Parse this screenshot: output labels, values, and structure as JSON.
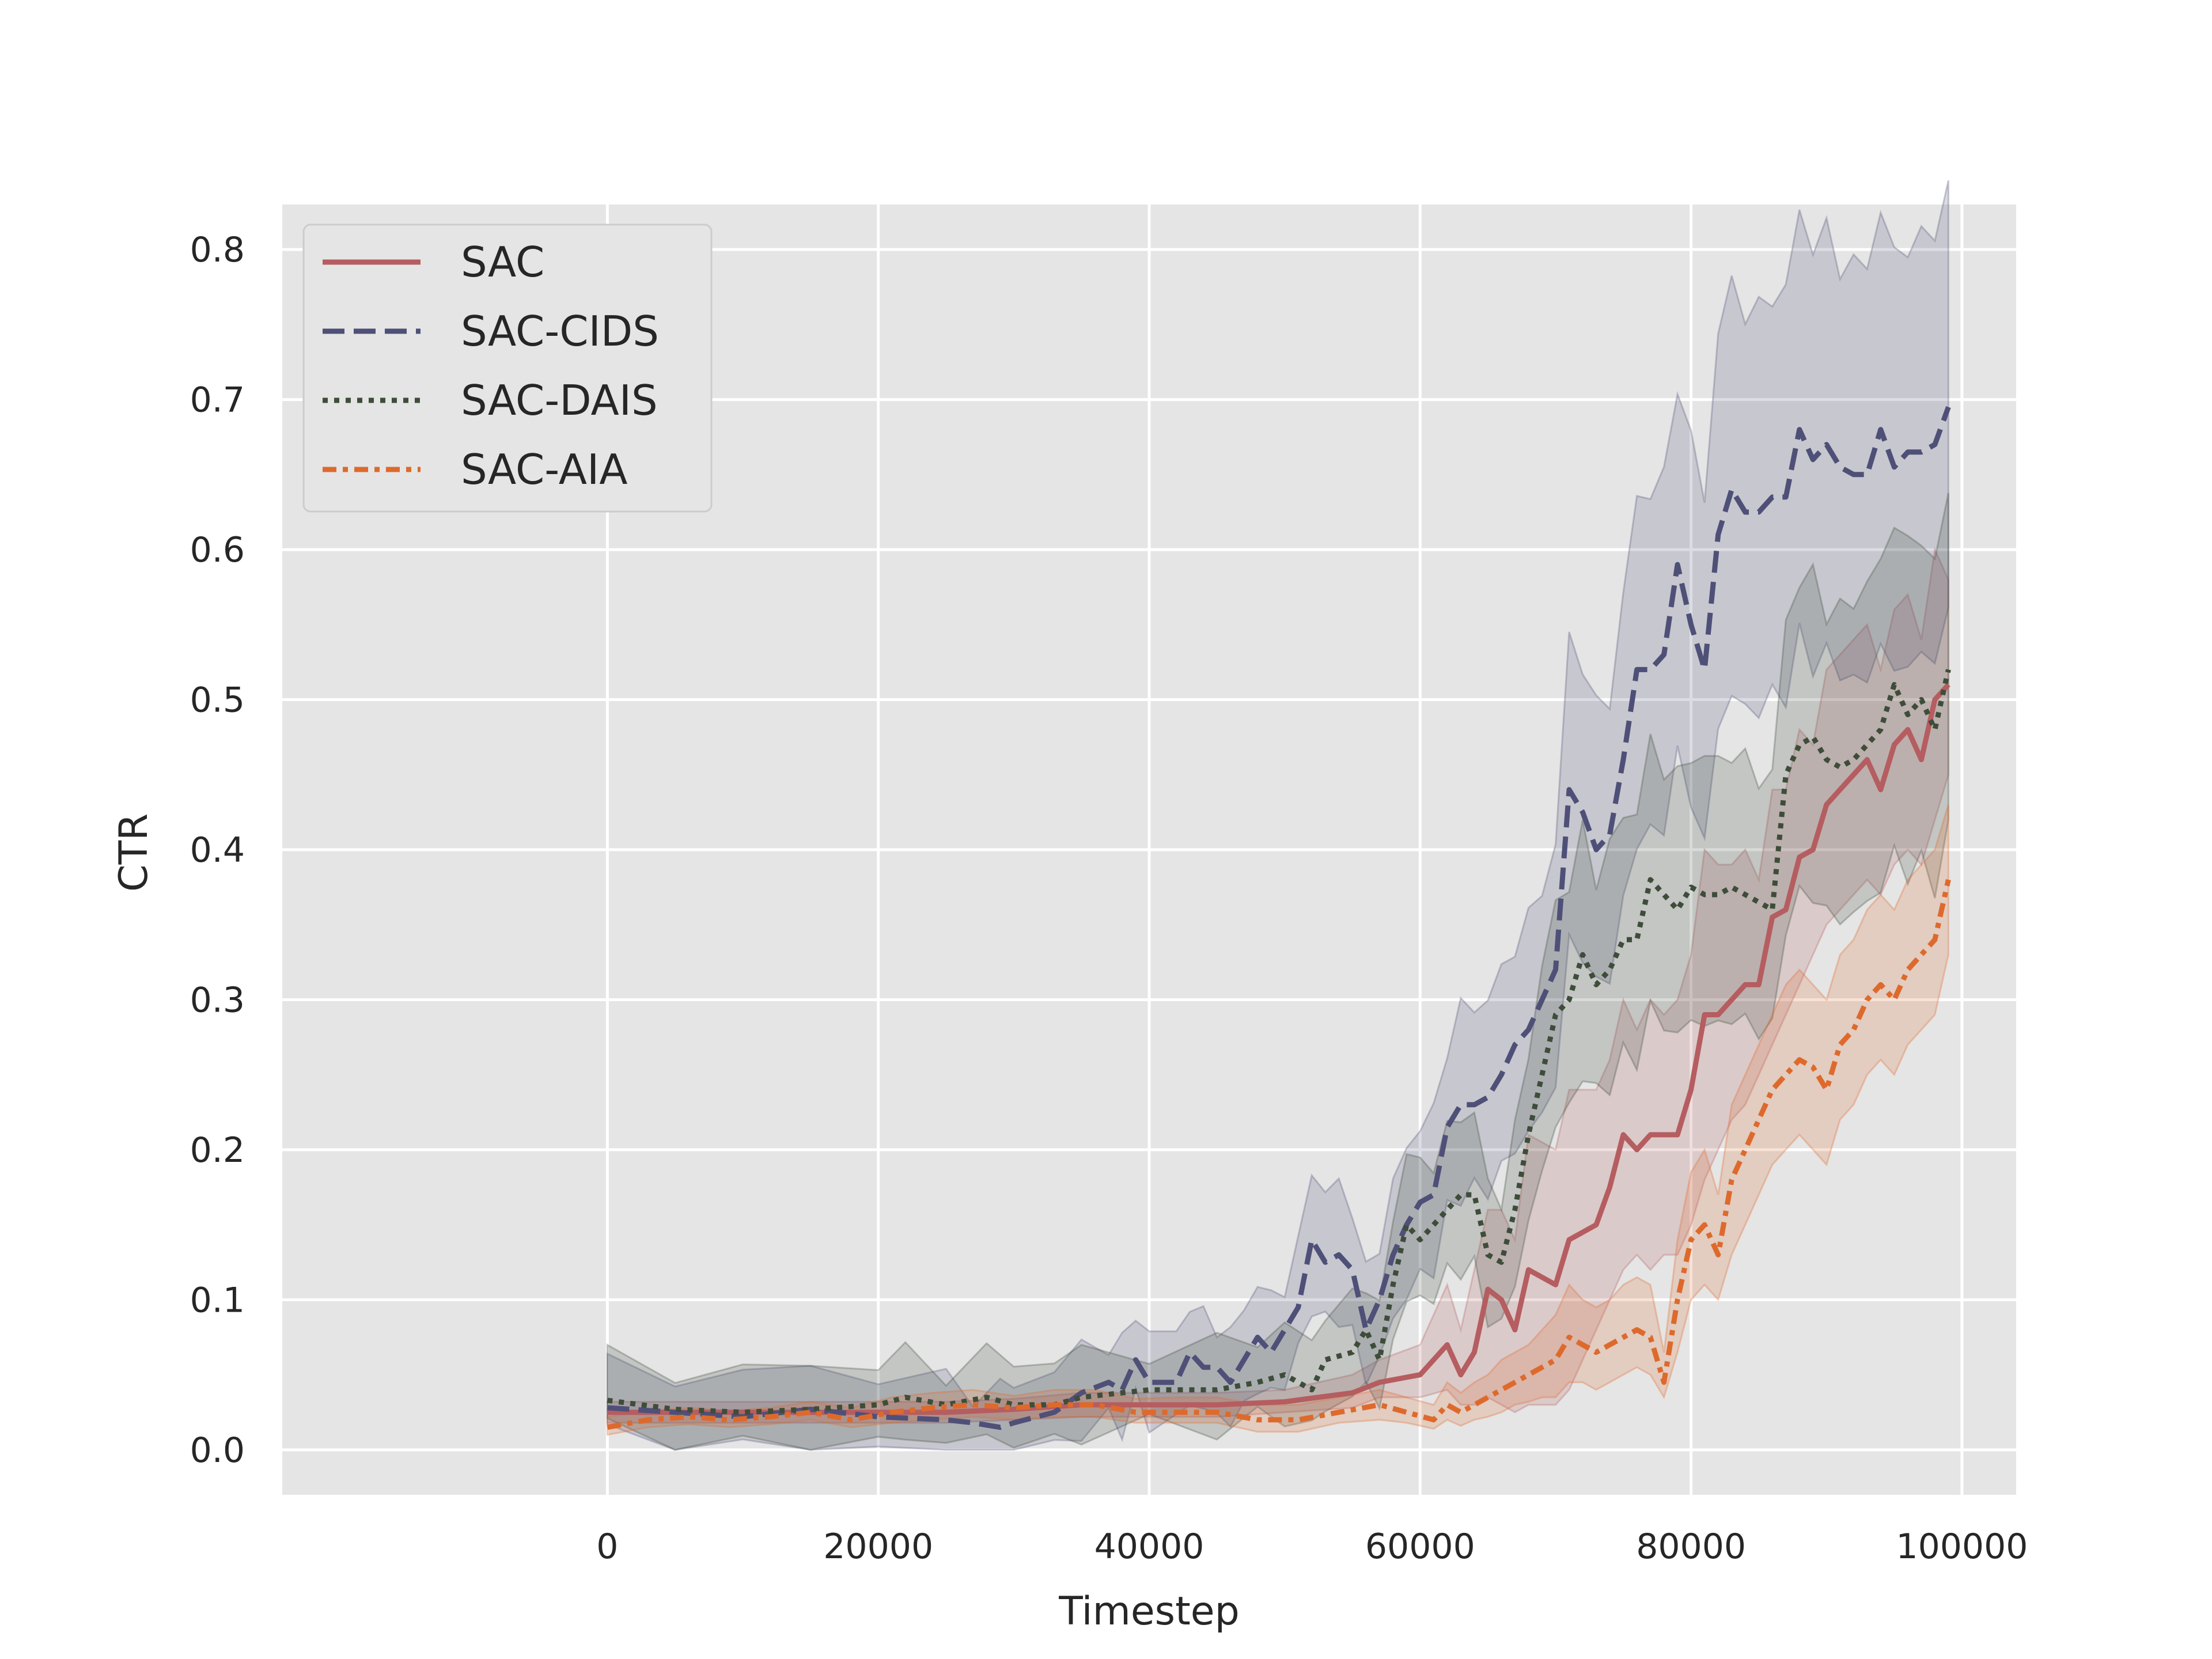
{
  "chart_data": {
    "type": "line",
    "xlabel": "Timestep",
    "ylabel": "CTR",
    "xlim": [
      -24000,
      104000
    ],
    "ylim": [
      -0.03,
      0.83
    ],
    "xticks": [
      0,
      20000,
      40000,
      60000,
      80000,
      100000
    ],
    "yticks": [
      0.0,
      0.1,
      0.2,
      0.3,
      0.4,
      0.5,
      0.6,
      0.7,
      0.8
    ],
    "xtick_labels": [
      "0",
      "20000",
      "40000",
      "60000",
      "80000",
      "100000"
    ],
    "ytick_labels": [
      "0.0",
      "0.1",
      "0.2",
      "0.3",
      "0.4",
      "0.5",
      "0.6",
      "0.7",
      "0.8"
    ],
    "grid": true,
    "legend": "upper left",
    "colors": {
      "background": "#e5e5e5",
      "grid": "#ffffff"
    },
    "series": [
      {
        "name": "SAC",
        "color": "#b55d60",
        "dash": "solid",
        "x": [
          0,
          5000,
          10000,
          15000,
          20000,
          25000,
          30000,
          35000,
          40000,
          45000,
          50000,
          55000,
          57000,
          60000,
          62000,
          63000,
          64000,
          65000,
          66000,
          67000,
          68000,
          70000,
          71000,
          72000,
          73000,
          74000,
          75000,
          76000,
          77000,
          78000,
          79000,
          80000,
          81000,
          82000,
          83000,
          84000,
          85000,
          86000,
          87000,
          88000,
          89000,
          90000,
          91000,
          92000,
          93000,
          94000,
          95000,
          96000,
          97000,
          98000,
          99000
        ],
        "y": [
          0.025,
          0.025,
          0.025,
          0.025,
          0.025,
          0.025,
          0.027,
          0.03,
          0.03,
          0.03,
          0.032,
          0.038,
          0.045,
          0.05,
          0.07,
          0.05,
          0.065,
          0.107,
          0.1,
          0.08,
          0.12,
          0.11,
          0.14,
          0.145,
          0.15,
          0.175,
          0.21,
          0.2,
          0.21,
          0.21,
          0.21,
          0.24,
          0.29,
          0.29,
          0.3,
          0.31,
          0.31,
          0.355,
          0.36,
          0.395,
          0.4,
          0.43,
          0.44,
          0.45,
          0.46,
          0.44,
          0.47,
          0.48,
          0.46,
          0.5,
          0.51
        ],
        "lower": [
          0.018,
          0.018,
          0.018,
          0.018,
          0.018,
          0.018,
          0.02,
          0.022,
          0.022,
          0.022,
          0.025,
          0.028,
          0.035,
          0.035,
          0.04,
          0.03,
          0.03,
          0.035,
          0.03,
          0.025,
          0.03,
          0.03,
          0.04,
          0.06,
          0.08,
          0.1,
          0.12,
          0.13,
          0.12,
          0.13,
          0.13,
          0.15,
          0.18,
          0.2,
          0.22,
          0.23,
          0.25,
          0.27,
          0.29,
          0.31,
          0.33,
          0.35,
          0.36,
          0.37,
          0.38,
          0.37,
          0.39,
          0.4,
          0.39,
          0.42,
          0.45
        ],
        "upper": [
          0.032,
          0.032,
          0.032,
          0.032,
          0.032,
          0.032,
          0.034,
          0.038,
          0.038,
          0.038,
          0.04,
          0.05,
          0.06,
          0.07,
          0.11,
          0.08,
          0.12,
          0.16,
          0.16,
          0.14,
          0.21,
          0.2,
          0.24,
          0.24,
          0.24,
          0.26,
          0.3,
          0.28,
          0.3,
          0.29,
          0.3,
          0.33,
          0.4,
          0.39,
          0.39,
          0.4,
          0.38,
          0.44,
          0.44,
          0.48,
          0.47,
          0.52,
          0.53,
          0.54,
          0.55,
          0.52,
          0.56,
          0.57,
          0.54,
          0.6,
          0.58
        ]
      },
      {
        "name": "SAC-CIDS",
        "color": "#4f5078",
        "dash": "dashed",
        "x": [
          0,
          5000,
          10000,
          15000,
          20000,
          25000,
          27000,
          29000,
          30000,
          33000,
          35000,
          37000,
          38000,
          39000,
          40000,
          42000,
          43000,
          44000,
          45000,
          46000,
          47000,
          48000,
          49000,
          50000,
          51000,
          52000,
          53000,
          54000,
          55000,
          56000,
          57000,
          58000,
          59000,
          60000,
          61000,
          62000,
          63000,
          64000,
          65000,
          66000,
          67000,
          68000,
          69000,
          70000,
          71000,
          72000,
          73000,
          74000,
          75000,
          76000,
          77000,
          78000,
          79000,
          80000,
          81000,
          82000,
          83000,
          84000,
          85000,
          86000,
          87000,
          88000,
          89000,
          90000,
          91000,
          92000,
          93000,
          94000,
          95000,
          96000,
          97000,
          98000,
          99000
        ],
        "y": [
          0.028,
          0.025,
          0.022,
          0.027,
          0.022,
          0.02,
          0.018,
          0.015,
          0.018,
          0.025,
          0.038,
          0.045,
          0.04,
          0.06,
          0.045,
          0.045,
          0.065,
          0.055,
          0.055,
          0.045,
          0.06,
          0.075,
          0.065,
          0.08,
          0.095,
          0.14,
          0.125,
          0.13,
          0.12,
          0.08,
          0.1,
          0.13,
          0.15,
          0.165,
          0.17,
          0.215,
          0.23,
          0.23,
          0.235,
          0.25,
          0.27,
          0.28,
          0.3,
          0.32,
          0.44,
          0.425,
          0.4,
          0.41,
          0.46,
          0.52,
          0.52,
          0.53,
          0.59,
          0.55,
          0.52,
          0.61,
          0.64,
          0.625,
          0.625,
          0.635,
          0.635,
          0.68,
          0.66,
          0.67,
          0.655,
          0.65,
          0.65,
          0.68,
          0.655,
          0.665,
          0.665,
          0.67,
          0.695
        ]
      },
      {
        "name": "SAC-DAIS",
        "color": "#3e4d3a",
        "dash": "dotted",
        "x": [
          0,
          5000,
          10000,
          15000,
          20000,
          22000,
          25000,
          28000,
          30000,
          33000,
          35000,
          40000,
          45000,
          48000,
          50000,
          52000,
          53000,
          55000,
          56000,
          57000,
          58000,
          59000,
          60000,
          61000,
          62000,
          63000,
          64000,
          65000,
          66000,
          67000,
          68000,
          69000,
          70000,
          71000,
          72000,
          73000,
          74000,
          75000,
          76000,
          77000,
          78000,
          79000,
          80000,
          81000,
          82000,
          83000,
          84000,
          85000,
          86000,
          87000,
          88000,
          89000,
          90000,
          91000,
          92000,
          93000,
          94000,
          95000,
          96000,
          97000,
          98000,
          99000
        ],
        "y": [
          0.033,
          0.027,
          0.025,
          0.027,
          0.03,
          0.035,
          0.03,
          0.035,
          0.03,
          0.03,
          0.035,
          0.04,
          0.04,
          0.045,
          0.05,
          0.04,
          0.06,
          0.065,
          0.08,
          0.06,
          0.11,
          0.15,
          0.14,
          0.15,
          0.16,
          0.17,
          0.17,
          0.13,
          0.125,
          0.16,
          0.21,
          0.25,
          0.29,
          0.3,
          0.33,
          0.31,
          0.32,
          0.34,
          0.34,
          0.38,
          0.37,
          0.36,
          0.375,
          0.37,
          0.37,
          0.375,
          0.37,
          0.365,
          0.36,
          0.45,
          0.47,
          0.475,
          0.46,
          0.455,
          0.46,
          0.47,
          0.48,
          0.51,
          0.49,
          0.5,
          0.48,
          0.52
        ]
      },
      {
        "name": "SAC-AIA",
        "color": "#dd6a2c",
        "dash": "dashdot",
        "x": [
          0,
          3000,
          6000,
          9000,
          12000,
          15000,
          18000,
          21000,
          24000,
          27000,
          30000,
          33000,
          36000,
          39000,
          42000,
          45000,
          48000,
          51000,
          54000,
          57000,
          59000,
          61000,
          62000,
          63000,
          64000,
          65000,
          66000,
          67000,
          68000,
          69000,
          70000,
          71000,
          72000,
          73000,
          74000,
          75000,
          76000,
          77000,
          78000,
          79000,
          80000,
          81000,
          82000,
          83000,
          84000,
          85000,
          86000,
          87000,
          88000,
          89000,
          90000,
          91000,
          92000,
          93000,
          94000,
          95000,
          96000,
          97000,
          98000,
          99000
        ],
        "y": [
          0.015,
          0.02,
          0.022,
          0.02,
          0.022,
          0.025,
          0.02,
          0.025,
          0.028,
          0.03,
          0.028,
          0.03,
          0.03,
          0.025,
          0.025,
          0.025,
          0.02,
          0.02,
          0.025,
          0.03,
          0.025,
          0.02,
          0.03,
          0.025,
          0.03,
          0.035,
          0.04,
          0.045,
          0.05,
          0.055,
          0.06,
          0.075,
          0.07,
          0.065,
          0.07,
          0.075,
          0.08,
          0.075,
          0.045,
          0.1,
          0.14,
          0.15,
          0.13,
          0.18,
          0.2,
          0.22,
          0.24,
          0.25,
          0.26,
          0.255,
          0.24,
          0.27,
          0.28,
          0.3,
          0.31,
          0.3,
          0.32,
          0.33,
          0.34,
          0.38
        ],
        "lower": [
          0.01,
          0.015,
          0.017,
          0.015,
          0.017,
          0.02,
          0.015,
          0.018,
          0.02,
          0.022,
          0.02,
          0.022,
          0.022,
          0.018,
          0.018,
          0.018,
          0.012,
          0.012,
          0.018,
          0.02,
          0.018,
          0.014,
          0.02,
          0.016,
          0.02,
          0.022,
          0.025,
          0.03,
          0.032,
          0.035,
          0.035,
          0.045,
          0.045,
          0.04,
          0.045,
          0.05,
          0.055,
          0.05,
          0.035,
          0.065,
          0.1,
          0.11,
          0.1,
          0.13,
          0.15,
          0.17,
          0.19,
          0.2,
          0.21,
          0.2,
          0.19,
          0.22,
          0.23,
          0.25,
          0.26,
          0.25,
          0.27,
          0.28,
          0.29,
          0.33
        ],
        "upper": [
          0.022,
          0.026,
          0.028,
          0.026,
          0.028,
          0.032,
          0.028,
          0.035,
          0.038,
          0.04,
          0.036,
          0.04,
          0.04,
          0.034,
          0.035,
          0.035,
          0.03,
          0.03,
          0.035,
          0.04,
          0.035,
          0.03,
          0.045,
          0.038,
          0.045,
          0.05,
          0.06,
          0.065,
          0.07,
          0.08,
          0.09,
          0.11,
          0.1,
          0.095,
          0.1,
          0.11,
          0.115,
          0.11,
          0.065,
          0.14,
          0.185,
          0.2,
          0.17,
          0.23,
          0.25,
          0.27,
          0.29,
          0.31,
          0.32,
          0.31,
          0.3,
          0.33,
          0.34,
          0.36,
          0.37,
          0.36,
          0.38,
          0.39,
          0.4,
          0.43
        ]
      }
    ]
  }
}
